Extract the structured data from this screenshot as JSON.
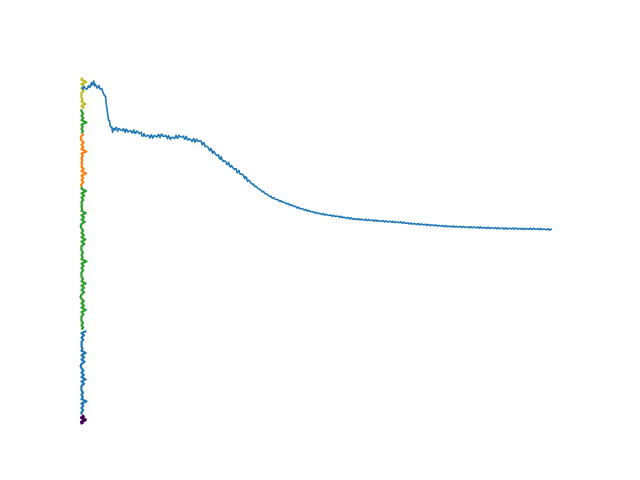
{
  "chart_data": {
    "type": "line",
    "title": "",
    "xlabel": "",
    "ylabel": "",
    "axes_visible": false,
    "grid": false,
    "legend": "none",
    "xlim": [
      0,
      1000
    ],
    "ylim": [
      0,
      1.0
    ],
    "main_series": {
      "color": "#1f77b4",
      "x": [
        0,
        10,
        20,
        25,
        30,
        40,
        50,
        55,
        60,
        65,
        70,
        80,
        90,
        100,
        110,
        120,
        130,
        150,
        170,
        190,
        210,
        230,
        250,
        260,
        270,
        280,
        300,
        320,
        340,
        360,
        380,
        400,
        420,
        440,
        460,
        480,
        500,
        520,
        540,
        560,
        580,
        600,
        620,
        640,
        660,
        680,
        700,
        720,
        740,
        760,
        780,
        800,
        820,
        840,
        860,
        880,
        900,
        920,
        940,
        960,
        980,
        1000
      ],
      "y": [
        0.963,
        0.958,
        0.97,
        0.975,
        0.965,
        0.96,
        0.935,
        0.88,
        0.855,
        0.84,
        0.845,
        0.842,
        0.84,
        0.838,
        0.835,
        0.835,
        0.826,
        0.822,
        0.826,
        0.818,
        0.823,
        0.813,
        0.81,
        0.8,
        0.788,
        0.778,
        0.755,
        0.735,
        0.715,
        0.69,
        0.67,
        0.652,
        0.64,
        0.63,
        0.62,
        0.612,
        0.605,
        0.6,
        0.596,
        0.592,
        0.588,
        0.586,
        0.584,
        0.582,
        0.58,
        0.578,
        0.575,
        0.573,
        0.571,
        0.569,
        0.567,
        0.566,
        0.565,
        0.564,
        0.563,
        0.562,
        0.561,
        0.561,
        0.56,
        0.56,
        0.559,
        0.558
      ]
    },
    "left_strip": {
      "x_center": 0,
      "segments": [
        {
          "color": "#bcbd22",
          "y_from": 0.9,
          "y_to": 0.99
        },
        {
          "color": "#2ca02c",
          "y_from": 0.83,
          "y_to": 0.9
        },
        {
          "color": "#ff7f0e",
          "y_from": 0.68,
          "y_to": 0.83
        },
        {
          "color": "#2ca02c",
          "y_from": 0.27,
          "y_to": 0.68
        },
        {
          "color": "#1f77b4",
          "y_from": 0.03,
          "y_to": 0.27
        },
        {
          "color": "#440154",
          "y_from": 0.0,
          "y_to": 0.03
        }
      ]
    }
  }
}
